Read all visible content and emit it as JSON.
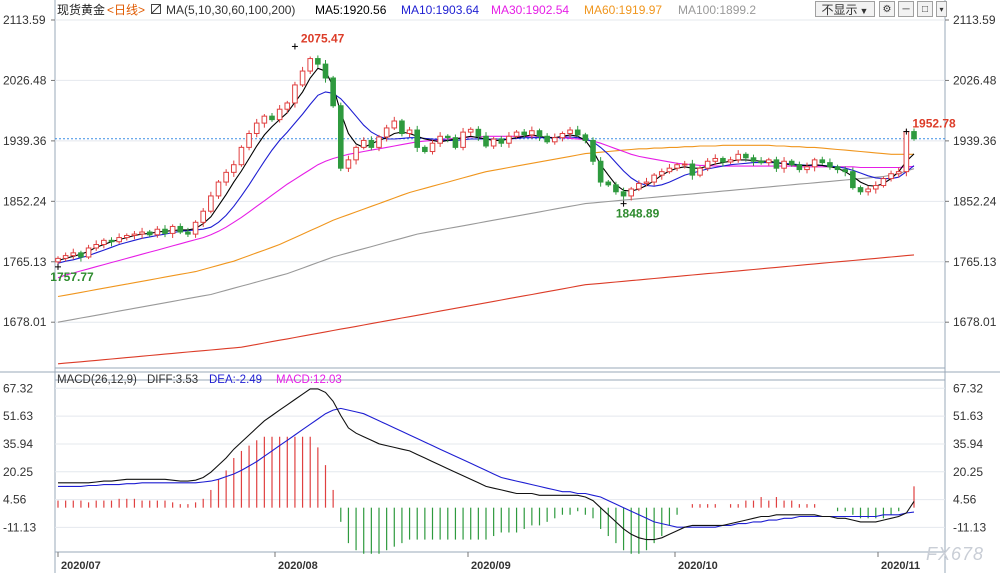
{
  "header": {
    "instrument": "现货黄金",
    "period": "<日线>",
    "ma_label": "MA(5,10,30,60,100,200)",
    "ma5": "MA5:1920.56",
    "ma10": "MA10:1903.64",
    "ma30": "MA30:1902.54",
    "ma60": "MA60:1919.97",
    "ma100": "MA100:1899.2",
    "display_button": "不显示",
    "display_arrow": "▼",
    "colors": {
      "ma5": "#000000",
      "ma10": "#1e1ed2",
      "ma30": "#e61ee6",
      "ma60": "#f0961e",
      "ma100": "#999999",
      "ma200": "#dc3c28"
    }
  },
  "sub_header": {
    "macd_label": "MACD(26,12,9)",
    "diff": "DIFF:3.53",
    "dea": "DEA:-2.49",
    "macd": "MACD:12.03"
  },
  "watermark": "FX678",
  "chart_data": {
    "type": "candlestick",
    "price_axis": {
      "ticks": [
        "2113.59",
        "2026.48",
        "1939.36",
        "1852.24",
        "1765.13",
        "1678.01"
      ],
      "min": 1612,
      "max": 2113.59
    },
    "macd_axis": {
      "ticks": [
        "67.32",
        "51.63",
        "35.94",
        "20.25",
        "4.56",
        "-11.13"
      ],
      "min": -25,
      "max": 72
    },
    "x_labels": [
      "2020/07",
      "2020/08",
      "2020/09",
      "2020/10",
      "2020/11"
    ],
    "annotations": [
      {
        "text": "2075.47",
        "value": 2075.47,
        "index": 31,
        "color": "#dc3c28"
      },
      {
        "text": "1757.77",
        "value": 1757.77,
        "index": 0,
        "color": "#2e8b2e"
      },
      {
        "text": "1848.89",
        "value": 1848.89,
        "index": 74,
        "color": "#2e8b2e"
      },
      {
        "text": "1952.78",
        "value": 1952.78,
        "index": 111,
        "color": "#dc3c28"
      }
    ],
    "last_price": 1942.5,
    "candles_close": [
      1770,
      1774,
      1778,
      1772,
      1785,
      1790,
      1796,
      1794,
      1800,
      1803,
      1805,
      1808,
      1804,
      1812,
      1806,
      1816,
      1808,
      1805,
      1822,
      1838,
      1860,
      1880,
      1894,
      1905,
      1930,
      1950,
      1965,
      1975,
      1970,
      1985,
      1994,
      2020,
      2040,
      2058,
      2050,
      2030,
      1990,
      1900,
      1912,
      1930,
      1940,
      1930,
      1945,
      1958,
      1968,
      1950,
      1955,
      1930,
      1924,
      1936,
      1946,
      1944,
      1930,
      1952,
      1956,
      1946,
      1932,
      1942,
      1936,
      1946,
      1952,
      1948,
      1954,
      1946,
      1938,
      1944,
      1950,
      1955,
      1948,
      1940,
      1910,
      1880,
      1876,
      1866,
      1860,
      1870,
      1878,
      1880,
      1890,
      1895,
      1900,
      1905,
      1906,
      1890,
      1900,
      1910,
      1914,
      1909,
      1912,
      1920,
      1915,
      1910,
      1908,
      1912,
      1900,
      1910,
      1905,
      1898,
      1902,
      1912,
      1908,
      1902,
      1898,
      1895,
      1872,
      1866,
      1870,
      1875,
      1885,
      1892,
      1895,
      1952.78,
      1942.5
    ],
    "candles_open": [
      1765,
      1770,
      1774,
      1778,
      1772,
      1785,
      1790,
      1796,
      1794,
      1800,
      1803,
      1805,
      1808,
      1804,
      1812,
      1806,
      1816,
      1808,
      1805,
      1822,
      1838,
      1860,
      1880,
      1894,
      1905,
      1930,
      1950,
      1965,
      1975,
      1970,
      1985,
      1994,
      2020,
      2040,
      2058,
      2050,
      2030,
      1990,
      1900,
      1912,
      1930,
      1940,
      1930,
      1945,
      1958,
      1968,
      1950,
      1955,
      1930,
      1924,
      1936,
      1946,
      1944,
      1930,
      1952,
      1956,
      1946,
      1932,
      1942,
      1936,
      1946,
      1952,
      1948,
      1954,
      1946,
      1938,
      1944,
      1950,
      1955,
      1948,
      1940,
      1910,
      1880,
      1876,
      1866,
      1860,
      1870,
      1878,
      1880,
      1890,
      1895,
      1900,
      1905,
      1906,
      1890,
      1900,
      1910,
      1914,
      1909,
      1912,
      1920,
      1915,
      1910,
      1908,
      1912,
      1900,
      1910,
      1905,
      1898,
      1902,
      1912,
      1908,
      1902,
      1898,
      1895,
      1872,
      1866,
      1870,
      1875,
      1885,
      1892,
      1895,
      1952.78
    ],
    "series": [
      {
        "name": "MA5",
        "values": [
          1767,
          1770,
          1773,
          1776,
          1780,
          1786,
          1790,
          1794,
          1797,
          1800,
          1803,
          1805,
          1806,
          1808,
          1809,
          1810,
          1811,
          1811,
          1813,
          1820,
          1830,
          1846,
          1862,
          1880,
          1896,
          1914,
          1932,
          1948,
          1960,
          1970,
          1980,
          1995,
          2010,
          2030,
          2044,
          2040,
          2018,
          1980,
          1950,
          1935,
          1930,
          1935,
          1940,
          1944,
          1950,
          1952,
          1950,
          1946,
          1942,
          1940,
          1938,
          1940,
          1942,
          1944,
          1946,
          1944,
          1942,
          1940,
          1940,
          1942,
          1944,
          1946,
          1948,
          1946,
          1944,
          1944,
          1946,
          1948,
          1946,
          1940,
          1925,
          1905,
          1890,
          1876,
          1868,
          1867,
          1870,
          1875,
          1882,
          1890,
          1896,
          1900,
          1902,
          1900,
          1900,
          1903,
          1906,
          1908,
          1910,
          1912,
          1912,
          1911,
          1910,
          1910,
          1908,
          1906,
          1905,
          1904,
          1904,
          1905,
          1904,
          1902,
          1900,
          1895,
          1888,
          1880,
          1875,
          1874,
          1878,
          1885,
          1895,
          1910,
          1920.56
        ]
      },
      {
        "name": "MA10",
        "values": [
          1763,
          1766,
          1768,
          1771,
          1774,
          1778,
          1782,
          1786,
          1790,
          1793,
          1796,
          1799,
          1801,
          1803,
          1805,
          1807,
          1809,
          1810,
          1811,
          1812,
          1815,
          1822,
          1832,
          1845,
          1860,
          1876,
          1893,
          1910,
          1926,
          1940,
          1952,
          1965,
          1978,
          1992,
          2005,
          2010,
          2008,
          2000,
          1988,
          1975,
          1962,
          1952,
          1946,
          1942,
          1942,
          1943,
          1944,
          1944,
          1943,
          1942,
          1941,
          1940,
          1940,
          1941,
          1942,
          1942,
          1942,
          1942,
          1942,
          1942,
          1943,
          1944,
          1944,
          1944,
          1944,
          1944,
          1945,
          1945,
          1944,
          1942,
          1938,
          1930,
          1920,
          1908,
          1896,
          1886,
          1879,
          1875,
          1874,
          1876,
          1880,
          1885,
          1890,
          1893,
          1896,
          1899,
          1901,
          1903,
          1905,
          1906,
          1907,
          1908,
          1908,
          1908,
          1908,
          1907,
          1906,
          1905,
          1904,
          1904,
          1904,
          1903,
          1902,
          1900,
          1897,
          1893,
          1889,
          1886,
          1885,
          1885,
          1887,
          1895,
          1903.64
        ]
      },
      {
        "name": "MA30",
        "values": [
          1742,
          1746,
          1749,
          1752,
          1755,
          1758,
          1761,
          1764,
          1767,
          1770,
          1773,
          1776,
          1779,
          1782,
          1785,
          1788,
          1791,
          1794,
          1797,
          1800,
          1804,
          1809,
          1815,
          1822,
          1829,
          1837,
          1845,
          1853,
          1861,
          1869,
          1877,
          1884,
          1891,
          1898,
          1905,
          1910,
          1914,
          1917,
          1920,
          1922,
          1924,
          1926,
          1928,
          1930,
          1932,
          1934,
          1936,
          1938,
          1939,
          1940,
          1941,
          1942,
          1943,
          1944,
          1945,
          1945,
          1946,
          1946,
          1946,
          1946,
          1946,
          1946,
          1945,
          1945,
          1945,
          1944,
          1944,
          1943,
          1942,
          1941,
          1939,
          1936,
          1932,
          1928,
          1924,
          1920,
          1917,
          1915,
          1913,
          1911,
          1909,
          1907,
          1906,
          1905,
          1904,
          1904,
          1903,
          1903,
          1903,
          1903,
          1903,
          1903,
          1903,
          1903,
          1903,
          1903,
          1903,
          1902,
          1902,
          1902,
          1902,
          1902,
          1902,
          1902,
          1902,
          1901,
          1901,
          1901,
          1901,
          1901,
          1901,
          1902,
          1902.54
        ]
      },
      {
        "name": "MA60",
        "values": [
          1715,
          1717,
          1719,
          1721,
          1723,
          1725,
          1727,
          1729,
          1731,
          1733,
          1735,
          1737,
          1739,
          1741,
          1743,
          1745,
          1747,
          1749,
          1751,
          1754,
          1757,
          1760,
          1763,
          1766,
          1770,
          1774,
          1778,
          1782,
          1786,
          1790,
          1795,
          1800,
          1805,
          1810,
          1815,
          1820,
          1825,
          1829,
          1833,
          1837,
          1841,
          1845,
          1849,
          1853,
          1857,
          1861,
          1865,
          1868,
          1871,
          1874,
          1877,
          1880,
          1883,
          1886,
          1889,
          1892,
          1895,
          1897,
          1899,
          1901,
          1903,
          1905,
          1907,
          1909,
          1911,
          1913,
          1915,
          1917,
          1919,
          1921,
          1922,
          1923,
          1924,
          1925,
          1926,
          1927,
          1928,
          1928,
          1929,
          1929,
          1930,
          1930,
          1931,
          1931,
          1932,
          1932,
          1932,
          1933,
          1933,
          1933,
          1933,
          1933,
          1933,
          1933,
          1932,
          1932,
          1931,
          1931,
          1930,
          1930,
          1929,
          1928,
          1927,
          1926,
          1925,
          1924,
          1923,
          1922,
          1921,
          1920,
          1920,
          1920,
          1919.97
        ]
      },
      {
        "name": "MA100",
        "values": [
          1678,
          1680,
          1682,
          1684,
          1686,
          1688,
          1690,
          1692,
          1694,
          1696,
          1698,
          1700,
          1702,
          1704,
          1706,
          1708,
          1710,
          1712,
          1714,
          1716,
          1718,
          1721,
          1724,
          1727,
          1730,
          1733,
          1736,
          1739,
          1742,
          1745,
          1748,
          1752,
          1756,
          1760,
          1764,
          1768,
          1772,
          1775,
          1778,
          1781,
          1784,
          1787,
          1790,
          1793,
          1796,
          1799,
          1802,
          1805,
          1807,
          1809,
          1811,
          1813,
          1815,
          1817,
          1819,
          1821,
          1823,
          1825,
          1827,
          1829,
          1831,
          1833,
          1835,
          1837,
          1839,
          1841,
          1843,
          1845,
          1847,
          1849,
          1850,
          1851,
          1852,
          1853,
          1854,
          1855,
          1856,
          1857,
          1858,
          1859,
          1860,
          1861,
          1862,
          1863,
          1864,
          1865,
          1866,
          1867,
          1868,
          1869,
          1870,
          1871,
          1872,
          1873,
          1874,
          1875,
          1876,
          1877,
          1878,
          1879,
          1880,
          1881,
          1882,
          1883,
          1884,
          1885,
          1886,
          1887,
          1888,
          1890,
          1892,
          1896,
          1899.2
        ]
      },
      {
        "name": "MA200",
        "values": [
          1618,
          1619,
          1620,
          1621,
          1622,
          1623,
          1624,
          1625,
          1626,
          1627,
          1628,
          1629,
          1630,
          1631,
          1632,
          1633,
          1634,
          1635,
          1636,
          1637,
          1638,
          1639,
          1640,
          1641,
          1642,
          1644,
          1646,
          1648,
          1650,
          1652,
          1654,
          1656,
          1658,
          1660,
          1662,
          1664,
          1666,
          1668,
          1670,
          1672,
          1674,
          1676,
          1678,
          1680,
          1682,
          1684,
          1686,
          1688,
          1690,
          1692,
          1694,
          1696,
          1698,
          1700,
          1702,
          1704,
          1706,
          1708,
          1710,
          1712,
          1714,
          1716,
          1718,
          1720,
          1722,
          1724,
          1726,
          1728,
          1730,
          1732,
          1733,
          1734,
          1735,
          1736,
          1737,
          1738,
          1739,
          1740,
          1741,
          1742,
          1743,
          1744,
          1745,
          1746,
          1747,
          1748,
          1749,
          1750,
          1751,
          1752,
          1753,
          1754,
          1755,
          1756,
          1757,
          1758,
          1759,
          1760,
          1761,
          1762,
          1763,
          1764,
          1765,
          1766,
          1767,
          1768,
          1769,
          1770,
          1771,
          1772,
          1773,
          1774,
          1775
        ]
      }
    ],
    "macd_diff": [
      14,
      14,
      14,
      14,
      14,
      14.5,
      15,
      15,
      15.5,
      16,
      16,
      16,
      16,
      16,
      16,
      15.5,
      15,
      15,
      15.5,
      17,
      20,
      24,
      28,
      33,
      37,
      41,
      45,
      49,
      52,
      55,
      58,
      61,
      64,
      67,
      67,
      65,
      60,
      52,
      45,
      42,
      40,
      38,
      36,
      35,
      34,
      33,
      32,
      30,
      28,
      26,
      24,
      22,
      20,
      18,
      16,
      14,
      12,
      11,
      10,
      9,
      8,
      8,
      8,
      7,
      7,
      7,
      7,
      7,
      7,
      6,
      4,
      0,
      -4,
      -8,
      -12,
      -15,
      -17,
      -18,
      -18,
      -17,
      -15,
      -13,
      -11,
      -10,
      -10,
      -10,
      -10,
      -10,
      -9,
      -8,
      -7,
      -6,
      -5,
      -5,
      -4,
      -4,
      -4,
      -4,
      -4,
      -4,
      -5,
      -5,
      -6,
      -6,
      -7,
      -8,
      -8,
      -8,
      -7,
      -6,
      -5,
      -3,
      3.53
    ],
    "macd_dea": [
      12,
      12,
      12,
      12,
      12.5,
      12.5,
      13,
      13,
      13,
      13.5,
      13.5,
      14,
      14,
      14,
      14,
      14,
      14,
      14,
      14,
      14.5,
      15,
      16,
      17.5,
      19,
      21,
      23.5,
      26,
      29,
      32,
      35,
      38,
      41,
      44,
      47,
      50,
      53,
      55,
      56,
      55,
      54,
      53,
      51,
      49,
      47,
      45,
      43,
      41,
      39,
      37,
      35,
      33,
      31,
      29,
      27,
      25,
      23,
      21,
      19,
      17,
      16,
      15,
      14,
      13,
      12,
      11,
      10,
      9,
      9,
      8,
      8,
      7,
      6,
      4,
      2,
      0,
      -2,
      -4,
      -6,
      -8,
      -9,
      -10,
      -11,
      -11,
      -11,
      -11,
      -11,
      -11,
      -10,
      -10,
      -9,
      -9,
      -8,
      -8,
      -7,
      -7,
      -6,
      -6,
      -5,
      -5,
      -5,
      -5,
      -5,
      -5,
      -5,
      -5,
      -5,
      -5,
      -5,
      -4,
      -4,
      -4,
      -3,
      -2.49
    ]
  }
}
